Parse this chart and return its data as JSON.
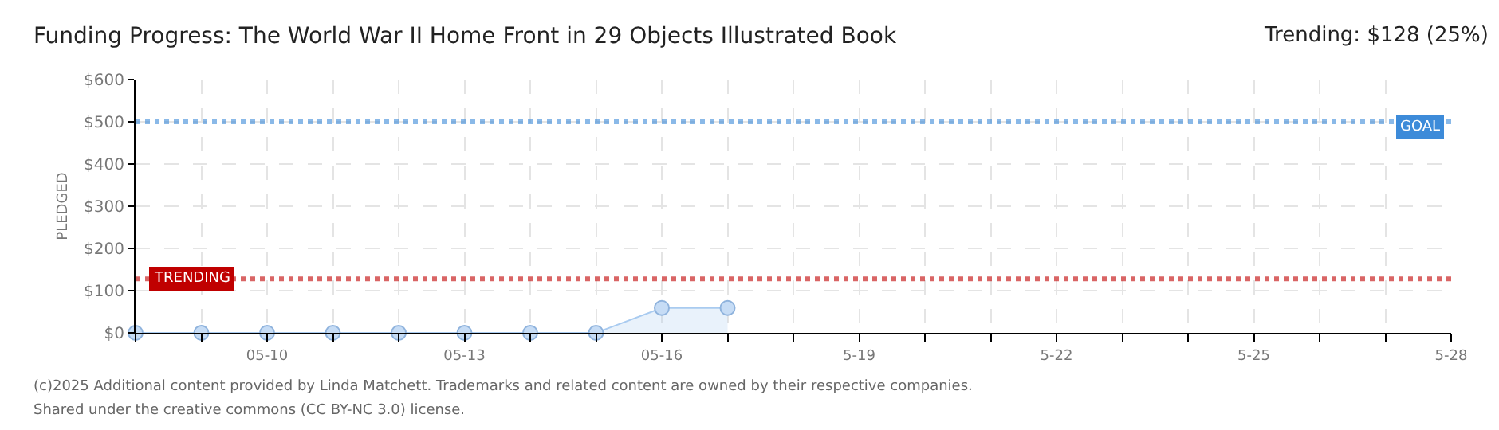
{
  "chart_data": {
    "type": "area",
    "title": "Funding Progress: The World War II Home Front in 29 Objects Illustrated Book",
    "subtitle": "Trending: $128 (25%)",
    "ylabel": "PLEDGED",
    "x": [
      "--05-08",
      "--05-09",
      "--05-10",
      "--05-11",
      "--05-12",
      "--05-13",
      "--05-14",
      "--05-15",
      "--05-16",
      "--05-17"
    ],
    "series": [
      {
        "color": "#a9cbf0",
        "values": [
          0,
          0,
          0,
          0,
          0,
          0,
          0,
          0,
          59,
          59
        ]
      }
    ],
    "marker": "circle",
    "xlim": [
      "--05-08",
      "--05-28"
    ],
    "xticks": [
      {
        "value": "--05-08",
        "label": null
      },
      {
        "value": "--05-09",
        "label": null
      },
      {
        "value": "--05-10",
        "label": "05-10"
      },
      {
        "value": "--05-11",
        "label": null
      },
      {
        "value": "--05-12",
        "label": null
      },
      {
        "value": "--05-13",
        "label": "05-13"
      },
      {
        "value": "--05-14",
        "label": null
      },
      {
        "value": "--05-15",
        "label": null
      },
      {
        "value": "--05-16",
        "label": "05-16"
      },
      {
        "value": "--05-17",
        "label": null
      },
      {
        "value": "--05-18",
        "label": null
      },
      {
        "value": "--05-19",
        "label": "5-19"
      },
      {
        "value": "--05-20",
        "label": null
      },
      {
        "value": "--05-21",
        "label": null
      },
      {
        "value": "--05-22",
        "label": "5-22"
      },
      {
        "value": "--05-23",
        "label": null
      },
      {
        "value": "--05-24",
        "label": null
      },
      {
        "value": "--05-25",
        "label": "5-25"
      },
      {
        "value": "--05-26",
        "label": null
      },
      {
        "value": "--05-27",
        "label": null
      },
      {
        "value": "--05-28",
        "label": "5-28"
      }
    ],
    "ylim": [
      0,
      600
    ],
    "yticks": [
      {
        "value": 0,
        "label": "$0"
      },
      {
        "value": 100,
        "label": "$100"
      },
      {
        "value": 200,
        "label": "$200"
      },
      {
        "value": 300,
        "label": "$300"
      },
      {
        "value": 400,
        "label": "$400"
      },
      {
        "value": 500,
        "label": "$500"
      },
      {
        "value": 600,
        "label": "$600"
      }
    ],
    "grid": true,
    "ref_lines": [
      {
        "axis": "y",
        "value": 500,
        "label": "GOAL",
        "color": "#3d8bd9",
        "line_style": "dotted"
      },
      {
        "axis": "y",
        "value": 128,
        "label": "TRENDING",
        "color": "#c00000",
        "line_style": "dotted"
      }
    ],
    "annotations": [
      "(c)2025 Additional content provided by Linda Matchett. Trademarks and related content are owned by their respective companies.",
      "Shared under the creative commons (CC BY-NC 3.0) license."
    ]
  }
}
